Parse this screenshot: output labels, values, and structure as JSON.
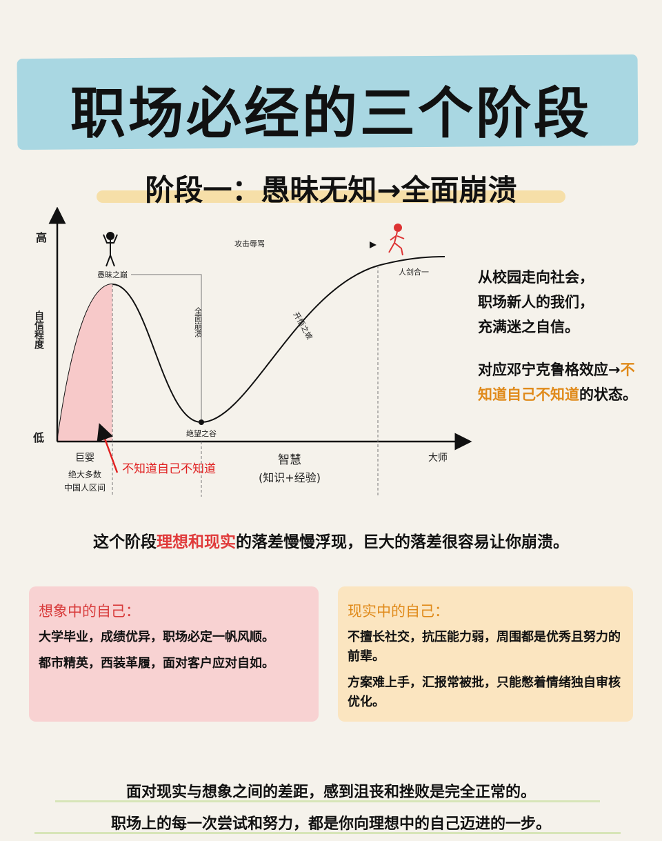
{
  "header": {
    "title": "职场必经的三个阶段",
    "subtitle": "阶段一：愚昧无知→全面崩溃"
  },
  "diagram": {
    "y_high": "高",
    "y_low": "低",
    "y_label": "自信程度",
    "peak": "愚昧之巅",
    "attack": "攻击辱骂",
    "collapse": "全面崩溃",
    "slope": "开悟之坡",
    "mastery": "人剑合一",
    "valley": "绝望之谷",
    "zone_1": "巨婴",
    "zone_1_note": [
      "绝大多数",
      "中国人区间"
    ],
    "zone_2": "智慧",
    "zone_2_note": "(知识+经验)",
    "zone_3": "大师",
    "annotation": "不知道自己不知道"
  },
  "side_text": {
    "paragraph_1": [
      "从校园走向社会，",
      "职场新人的我们，",
      "充满迷之自信。"
    ],
    "paragraph_2": {
      "before": "对应邓宁克鲁格效应→",
      "highlight": "不知道自己不知道",
      "after": "的状态。"
    }
  },
  "summary": {
    "before": "这个阶段",
    "highlight": "理想和现实",
    "after": "的落差慢慢浮现，巨大的落差很容易让你崩溃。"
  },
  "cards": [
    {
      "title": "想象中的自己：",
      "items": [
        "大学毕业，成绩优异，职场必定一帆风顺。",
        "都市精英，西装革履，面对客户应对自如。"
      ]
    },
    {
      "title": "现实中的自己：",
      "items": [
        "不擅长社交，抗压能力弱，周围都是优秀且努力的前辈。",
        "方案难上手，汇报常被批，只能憋着情绪独自审核优化。"
      ]
    }
  ],
  "footer": [
    "面对现实与想象之间的差距，感到沮丧和挫败是完全正常的。",
    "职场上的每一次尝试和努力，都是你向理想中的自己迈进的一步。"
  ]
}
